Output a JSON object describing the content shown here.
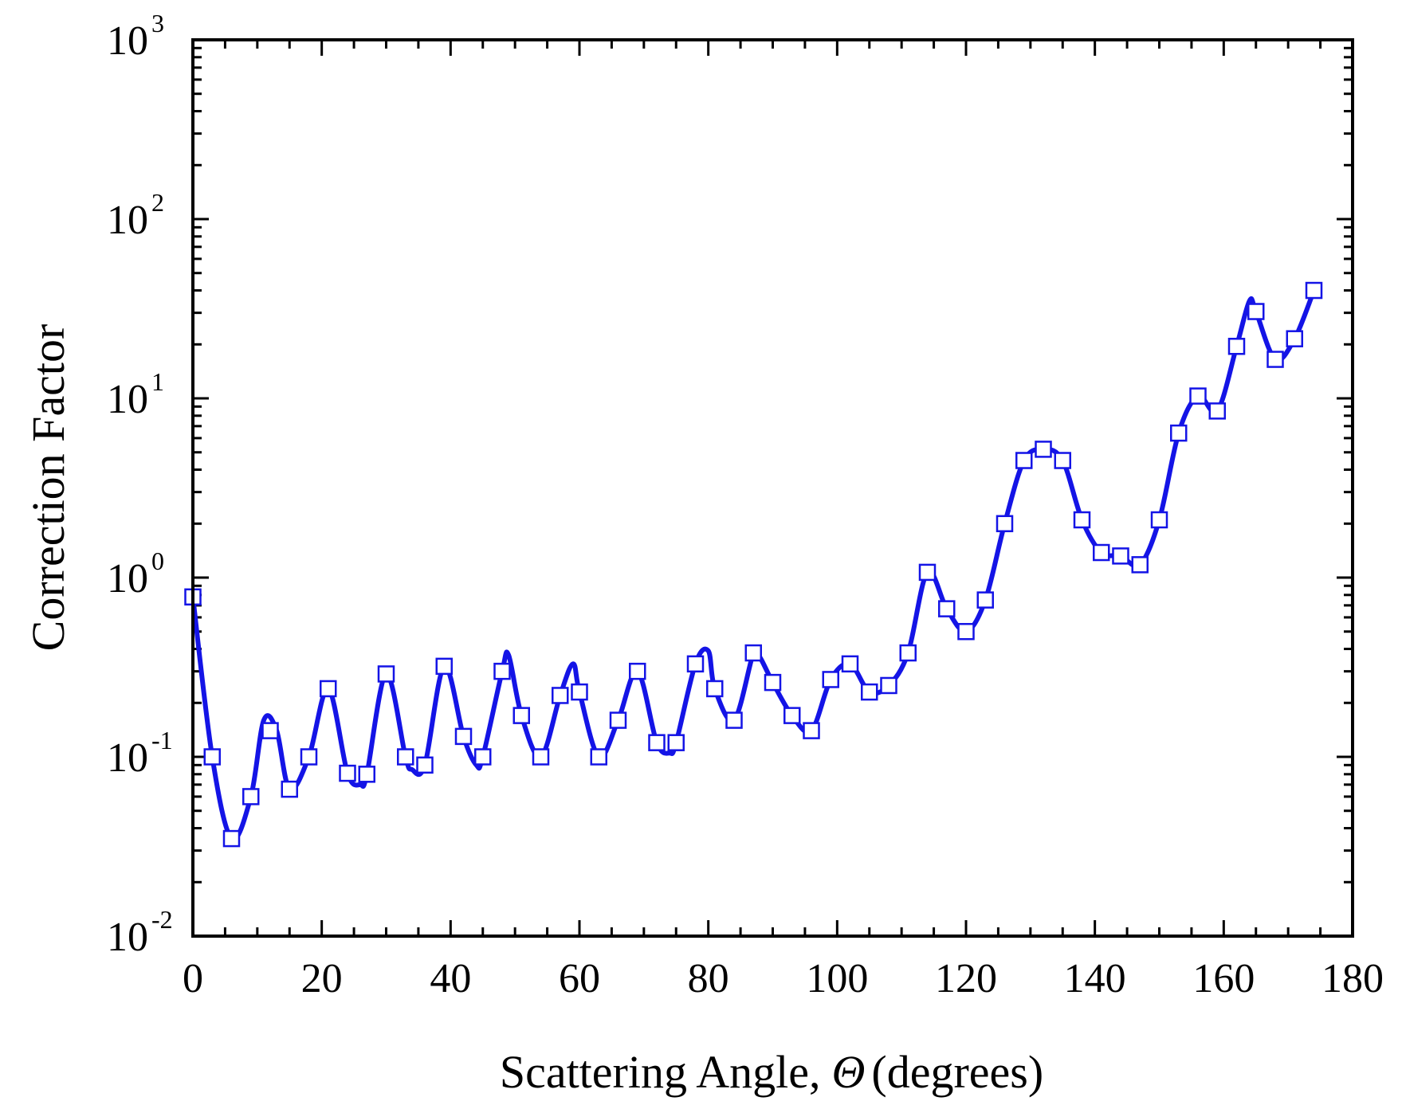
{
  "chart_data": {
    "type": "line",
    "title": "",
    "xlabel": "Scattering Angle, Θ (degrees)",
    "xlabel_main": "Scattering Angle,",
    "xlabel_symbol": "Θ",
    "xlabel_unit": "(degrees)",
    "ylabel": "Correction Factor",
    "xlim": [
      0,
      180
    ],
    "ylim": [
      0.01,
      1000
    ],
    "yscale": "log",
    "x_ticks": [
      0,
      20,
      40,
      60,
      80,
      100,
      120,
      140,
      160,
      180
    ],
    "x_tick_labels": [
      "0",
      "20",
      "40",
      "60",
      "80",
      "100",
      "120",
      "140",
      "160",
      "180"
    ],
    "y_ticks": [
      {
        "value": 0.01,
        "base": "10",
        "exp": "-2"
      },
      {
        "value": 0.1,
        "base": "10",
        "exp": "-1"
      },
      {
        "value": 1,
        "base": "10",
        "exp": "0"
      },
      {
        "value": 10,
        "base": "10",
        "exp": "1"
      },
      {
        "value": 100,
        "base": "10",
        "exp": "2"
      },
      {
        "value": 1000,
        "base": "10",
        "exp": "3"
      }
    ],
    "grid": false,
    "legend": "none",
    "series": [
      {
        "name": "correction-factor-curve",
        "color": "#1414e6",
        "style": "smooth line",
        "x": [
          0,
          3,
          6,
          9,
          11,
          13,
          15,
          18,
          21,
          24,
          26,
          27,
          30,
          33,
          34,
          36,
          39,
          42,
          44,
          45,
          48,
          49,
          51,
          54,
          57,
          59,
          60,
          63,
          66,
          69,
          72,
          74,
          75,
          78,
          80,
          81,
          84,
          87,
          88,
          90,
          93,
          96,
          99,
          102,
          105,
          108,
          111,
          114,
          117,
          120,
          123,
          126,
          129,
          132,
          135,
          138,
          141,
          144,
          147,
          150,
          153,
          156,
          159,
          162,
          164,
          165,
          168,
          171,
          174
        ],
        "y": [
          0.78,
          0.1,
          0.035,
          0.06,
          0.16,
          0.14,
          0.066,
          0.1,
          0.24,
          0.081,
          0.07,
          0.08,
          0.29,
          0.1,
          0.085,
          0.09,
          0.32,
          0.13,
          0.09,
          0.1,
          0.3,
          0.37,
          0.17,
          0.1,
          0.22,
          0.33,
          0.23,
          0.1,
          0.16,
          0.3,
          0.12,
          0.105,
          0.12,
          0.33,
          0.39,
          0.24,
          0.16,
          0.38,
          0.36,
          0.26,
          0.17,
          0.14,
          0.27,
          0.33,
          0.23,
          0.25,
          0.38,
          1.07,
          0.67,
          0.5,
          0.75,
          2.0,
          4.5,
          5.2,
          4.5,
          2.1,
          1.38,
          1.32,
          1.18,
          2.1,
          6.4,
          10.3,
          8.5,
          19.5,
          35,
          30.5,
          16.5,
          21.5,
          40
        ]
      },
      {
        "name": "square-markers",
        "marker": "open square",
        "marker_edge": "#1414e6",
        "marker_fill": "#ffffff",
        "x": [
          0,
          3,
          6,
          9,
          12,
          15,
          18,
          21,
          24,
          27,
          30,
          33,
          36,
          39,
          42,
          45,
          48,
          51,
          54,
          57,
          60,
          63,
          66,
          69,
          72,
          75,
          78,
          81,
          84,
          87,
          90,
          93,
          96,
          99,
          102,
          105,
          108,
          111,
          114,
          117,
          120,
          123,
          126,
          129,
          132,
          135,
          138,
          141,
          144,
          147,
          150,
          153,
          156,
          159,
          162,
          165,
          168,
          171,
          174
        ],
        "y": [
          0.78,
          0.1,
          0.035,
          0.06,
          0.14,
          0.066,
          0.1,
          0.24,
          0.081,
          0.08,
          0.29,
          0.1,
          0.09,
          0.32,
          0.13,
          0.1,
          0.3,
          0.17,
          0.1,
          0.22,
          0.23,
          0.1,
          0.16,
          0.3,
          0.12,
          0.12,
          0.33,
          0.24,
          0.16,
          0.38,
          0.26,
          0.17,
          0.14,
          0.27,
          0.33,
          0.23,
          0.25,
          0.38,
          1.07,
          0.67,
          0.5,
          0.75,
          2.0,
          4.5,
          5.2,
          4.5,
          2.1,
          1.38,
          1.32,
          1.18,
          2.1,
          6.4,
          10.3,
          8.5,
          19.5,
          30.5,
          16.5,
          21.5,
          40
        ]
      }
    ]
  }
}
